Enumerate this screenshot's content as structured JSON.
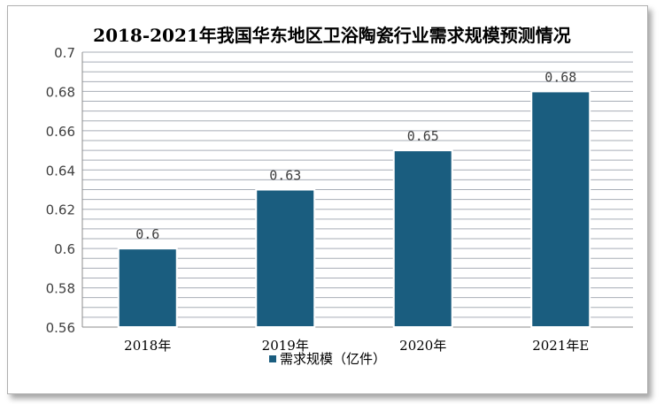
{
  "chart_data": {
    "type": "bar",
    "title": "2018-2021年我国华东地区卫浴陶瓷行业需求规模预测情况",
    "categories": [
      "2018年",
      "2019年",
      "2020年",
      "2021年E"
    ],
    "series": [
      {
        "name": "需求规模（亿件）",
        "values": [
          0.6,
          0.63,
          0.65,
          0.68
        ]
      }
    ],
    "data_labels": [
      "0.6",
      "0.63",
      "0.65",
      "0.68"
    ],
    "ylim": [
      0.56,
      0.7
    ],
    "yticks": [
      "0.56",
      "0.58",
      "0.6",
      "0.62",
      "0.64",
      "0.66",
      "0.68",
      "0.7"
    ],
    "xlabel": "",
    "ylabel": "",
    "grid": true,
    "legend_position": "bottom",
    "colors": {
      "bar": "#1a5d7f",
      "grid": "#a7adb6",
      "background": "#ffffff"
    }
  }
}
